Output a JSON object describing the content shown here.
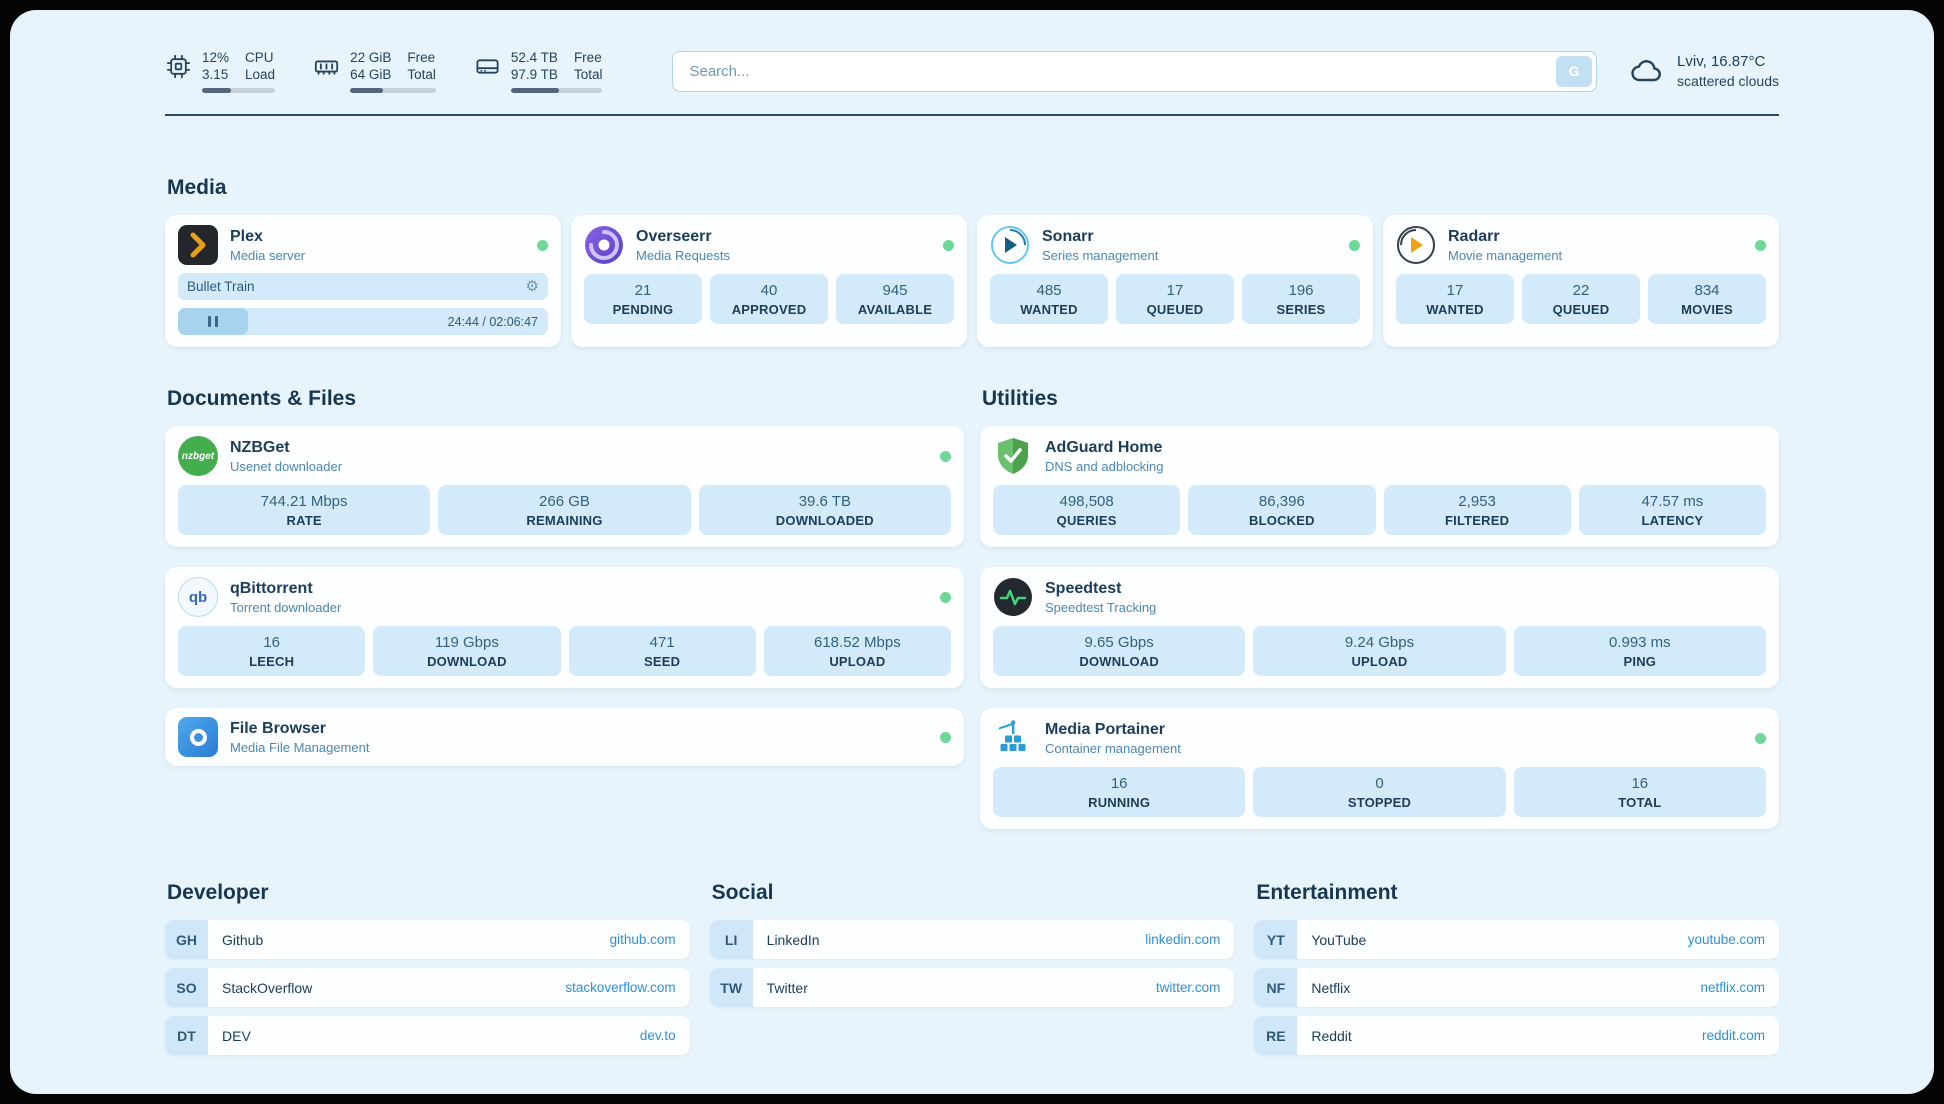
{
  "colors": {
    "page_background": "#e7f4fc",
    "card_background": "#fcfeff",
    "tile_background": "#d2eaf9",
    "text_primary": "#1c3c5a",
    "text_secondary": "#4e86b0",
    "link": "#2f8fd6",
    "status_online": "#6fd898",
    "plex_gold": "#e8a117",
    "adguard_green": "#5fb760",
    "speedtest_green": "#40d67c",
    "portainer_blue": "#2a9cd8"
  },
  "header": {
    "stats": [
      {
        "icon": "cpu-icon",
        "top_value": "12%",
        "bottom_value": "3.15",
        "top_label": "CPU",
        "bottom_label": "Load",
        "progress_pct": 40
      },
      {
        "icon": "ram-icon",
        "top_value": "22 GiB",
        "bottom_value": "64 GiB",
        "top_label": "Free",
        "bottom_label": "Total",
        "progress_pct": 38
      },
      {
        "icon": "disk-icon",
        "top_value": "52.4 TB",
        "bottom_value": "97.9 TB",
        "top_label": "Free",
        "bottom_label": "Total",
        "progress_pct": 52
      }
    ],
    "search": {
      "placeholder": "Search...",
      "button_label": "G"
    },
    "weather": {
      "location": "Lviv, 16.87°C",
      "condition": "scattered clouds"
    }
  },
  "media": {
    "heading": "Media",
    "plex": {
      "name": "Plex",
      "subtitle": "Media server",
      "now_playing": "Bullet Train",
      "time": "24:44 / 02:06:47",
      "progress_pct": 19
    },
    "overseerr": {
      "name": "Overseerr",
      "subtitle": "Media Requests",
      "stats": [
        {
          "value": "21",
          "label": "PENDING"
        },
        {
          "value": "40",
          "label": "APPROVED"
        },
        {
          "value": "945",
          "label": "AVAILABLE"
        }
      ]
    },
    "sonarr": {
      "name": "Sonarr",
      "subtitle": "Series management",
      "stats": [
        {
          "value": "485",
          "label": "WANTED"
        },
        {
          "value": "17",
          "label": "QUEUED"
        },
        {
          "value": "196",
          "label": "SERIES"
        }
      ]
    },
    "radarr": {
      "name": "Radarr",
      "subtitle": "Movie management",
      "stats": [
        {
          "value": "17",
          "label": "WANTED"
        },
        {
          "value": "22",
          "label": "QUEUED"
        },
        {
          "value": "834",
          "label": "MOVIES"
        }
      ]
    }
  },
  "documents": {
    "heading": "Documents & Files",
    "nzbget": {
      "name": "NZBGet",
      "subtitle": "Usenet downloader",
      "icon_text": "nzbget",
      "stats": [
        {
          "value": "744.21 Mbps",
          "label": "RATE"
        },
        {
          "value": "266 GB",
          "label": "REMAINING"
        },
        {
          "value": "39.6 TB",
          "label": "DOWNLOADED"
        }
      ]
    },
    "qbittorrent": {
      "name": "qBittorrent",
      "subtitle": "Torrent downloader",
      "icon_text": "qb",
      "stats": [
        {
          "value": "16",
          "label": "LEECH"
        },
        {
          "value": "119 Gbps",
          "label": "DOWNLOAD"
        },
        {
          "value": "471",
          "label": "SEED"
        },
        {
          "value": "618.52 Mbps",
          "label": "UPLOAD"
        }
      ]
    },
    "filebrowser": {
      "name": "File Browser",
      "subtitle": "Media File Management"
    }
  },
  "utilities": {
    "heading": "Utilities",
    "adguard": {
      "name": "AdGuard Home",
      "subtitle": "DNS and adblocking",
      "stats": [
        {
          "value": "498,508",
          "label": "QUERIES"
        },
        {
          "value": "86,396",
          "label": "BLOCKED"
        },
        {
          "value": "2,953",
          "label": "FILTERED"
        },
        {
          "value": "47.57 ms",
          "label": "LATENCY"
        }
      ]
    },
    "speedtest": {
      "name": "Speedtest",
      "subtitle": "Speedtest Tracking",
      "stats": [
        {
          "value": "9.65 Gbps",
          "label": "DOWNLOAD"
        },
        {
          "value": "9.24 Gbps",
          "label": "UPLOAD"
        },
        {
          "value": "0.993 ms",
          "label": "PING"
        }
      ]
    },
    "portainer": {
      "name": "Media Portainer",
      "subtitle": "Container management",
      "stats": [
        {
          "value": "16",
          "label": "RUNNING"
        },
        {
          "value": "0",
          "label": "STOPPED"
        },
        {
          "value": "16",
          "label": "TOTAL"
        }
      ]
    }
  },
  "bookmarks": {
    "developer": {
      "heading": "Developer",
      "items": [
        {
          "abbr": "GH",
          "name": "Github",
          "url": "github.com"
        },
        {
          "abbr": "SO",
          "name": "StackOverflow",
          "url": "stackoverflow.com"
        },
        {
          "abbr": "DT",
          "name": "DEV",
          "url": "dev.to"
        }
      ]
    },
    "social": {
      "heading": "Social",
      "items": [
        {
          "abbr": "LI",
          "name": "LinkedIn",
          "url": "linkedin.com"
        },
        {
          "abbr": "TW",
          "name": "Twitter",
          "url": "twitter.com"
        }
      ]
    },
    "entertainment": {
      "heading": "Entertainment",
      "items": [
        {
          "abbr": "YT",
          "name": "YouTube",
          "url": "youtube.com"
        },
        {
          "abbr": "NF",
          "name": "Netflix",
          "url": "netflix.com"
        },
        {
          "abbr": "RE",
          "name": "Reddit",
          "url": "reddit.com"
        }
      ]
    }
  }
}
